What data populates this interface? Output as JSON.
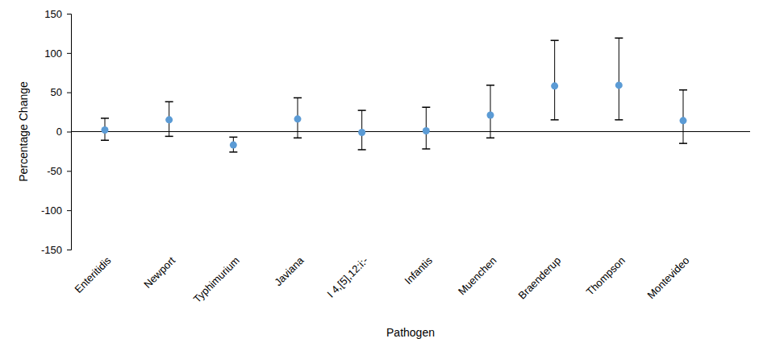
{
  "chart_data": {
    "type": "scatter",
    "x_label": "Pathogen",
    "y_label": "Percentage Change",
    "categories": [
      "Enteritidis",
      "Newport",
      "Typhimurium",
      "Javiana",
      "I 4,[5],12:i:-",
      "Infantis",
      "Muenchen",
      "Braenderup",
      "Thompson",
      "Montevideo"
    ],
    "values": [
      2,
      15,
      -17,
      16,
      -1,
      1,
      21,
      58,
      59,
      14
    ],
    "lower": [
      -11,
      -6,
      -26,
      -8,
      -23,
      -22,
      -8,
      15,
      15,
      -15
    ],
    "upper": [
      17,
      38,
      -7,
      43,
      27,
      31,
      59,
      116,
      119,
      53
    ],
    "color": "#5b9bd5",
    "ylim": [
      -150,
      150
    ],
    "yticks": [
      -150,
      -100,
      -50,
      0,
      50,
      100,
      150
    ],
    "grid": false
  }
}
